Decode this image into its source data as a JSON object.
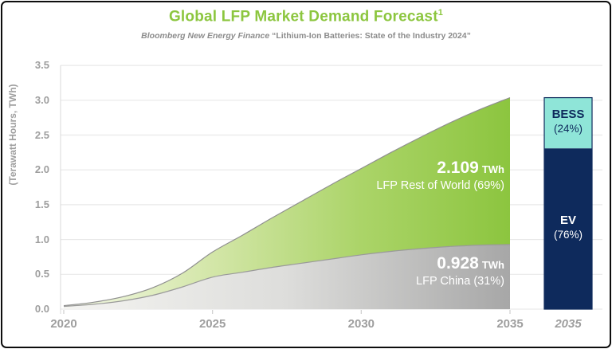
{
  "header": {
    "title": "Global LFP Market Demand Forecast",
    "title_sup": "1",
    "subtitle_source": "Bloomberg New Energy Finance",
    "subtitle_report": "“Lithium-Ion Batteries: State of the Industry 2024”"
  },
  "colors": {
    "title_green": "#8cc63f",
    "area_green_end": "#8cc53f",
    "area_green_start": "#f3f8e6",
    "area_gray_end": "#a7a7a7",
    "area_gray_start": "#f4f4f1",
    "bar_navy": "#0e2a5c",
    "bar_cyan": "#8fe5d8",
    "axis_text": "#9e9e9e",
    "grid_line": "#e9e9e9",
    "frame_border": "#0d0d0d",
    "annotation_text": "#ffffff"
  },
  "chart_data": [
    {
      "type": "area",
      "stacked": true,
      "title": "Global LFP Market Demand Forecast",
      "ylabel": "(Terawatt Hours, TWh)",
      "grid": true,
      "x": [
        2020,
        2021,
        2022,
        2023,
        2024,
        2025,
        2026,
        2027,
        2028,
        2029,
        2030,
        2031,
        2032,
        2033,
        2034,
        2035
      ],
      "x_ticks": [
        "2020",
        "2025",
        "2030",
        "2035"
      ],
      "x_tick_years": [
        2020,
        2025,
        2030,
        2035
      ],
      "y_ticks": [
        "3.5",
        "3.0",
        "2.5",
        "2.0",
        "1.5",
        "1.0",
        "0.5",
        "0.0"
      ],
      "ylim": [
        0,
        3.5
      ],
      "xlim": [
        2020,
        2035
      ],
      "series": [
        {
          "name": "LFP China",
          "end_value_twh": 0.928,
          "share_pct": 31,
          "values": [
            0.04,
            0.07,
            0.12,
            0.2,
            0.32,
            0.46,
            0.53,
            0.6,
            0.66,
            0.72,
            0.78,
            0.83,
            0.87,
            0.9,
            0.92,
            0.928
          ],
          "gradient": [
            "#f4f4f1",
            "#dddddb",
            "#a7a7a7"
          ]
        },
        {
          "name": "LFP Rest of World",
          "end_value_twh": 2.109,
          "share_pct": 69,
          "values": [
            0.01,
            0.03,
            0.06,
            0.11,
            0.2,
            0.36,
            0.53,
            0.71,
            0.89,
            1.07,
            1.24,
            1.42,
            1.6,
            1.78,
            1.95,
            2.109
          ],
          "gradient": [
            "#f3f8e6",
            "#d3e6a8",
            "#abd468",
            "#8cc53f"
          ]
        }
      ],
      "annotations": {
        "row": {
          "value": "2.109",
          "unit": "TWh",
          "label": "LFP Rest of World (69%)"
        },
        "china": {
          "value": "0.928",
          "unit": "TWh",
          "label": "LFP China (31%)"
        }
      }
    },
    {
      "type": "bar",
      "stacked": true,
      "categories": [
        "2035"
      ],
      "total_twh": 3.037,
      "segments": [
        {
          "name": "BESS",
          "pct": 24,
          "pct_label": "(24%)",
          "color": "#8fe5d8",
          "text_color": "#0e2a5c"
        },
        {
          "name": "EV",
          "pct": 76,
          "pct_label": "(76%)",
          "color": "#0e2a5c",
          "text_color": "#ffffff"
        }
      ]
    }
  ]
}
